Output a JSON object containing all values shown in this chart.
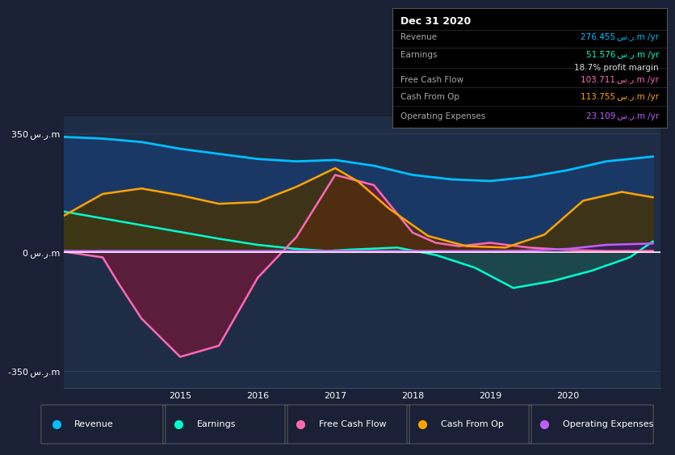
{
  "bg_color": "#1a2035",
  "plot_bg_color": "#1e2d45",
  "grid_color": "#2a3f5f",
  "zero_line_color": "#ffffff",
  "xlim": [
    2013.5,
    2021.2
  ],
  "ylim": [
    -400,
    400
  ],
  "ytick_labels": [
    "-350 س.ر.m",
    "0 س.ر.m",
    "350 س.ر.m"
  ],
  "xticks": [
    2015,
    2016,
    2017,
    2018,
    2019,
    2020
  ],
  "info_box": {
    "title": "Dec 31 2020",
    "rows": [
      {
        "label": "Revenue",
        "value": "276.455 س.ر.m /yr",
        "color": "#00bfff"
      },
      {
        "label": "Earnings",
        "value": "51.576 س.ر.m /yr",
        "color": "#00ffcc"
      },
      {
        "label": "",
        "value": "18.7% profit margin",
        "color": "#dddddd"
      },
      {
        "label": "Free Cash Flow",
        "value": "103.711 س.ر.m /yr",
        "color": "#ff69b4"
      },
      {
        "label": "Cash From Op",
        "value": "113.755 س.ر.m /yr",
        "color": "#ffa500"
      },
      {
        "label": "Operating Expenses",
        "value": "23.109 س.ر.m /yr",
        "color": "#bf5fff"
      }
    ]
  },
  "series": {
    "revenue": {
      "color": "#00bfff",
      "fill_color": "#1a3a6a",
      "x": [
        2013.5,
        2014.0,
        2014.5,
        2015.0,
        2015.5,
        2016.0,
        2016.5,
        2017.0,
        2017.5,
        2018.0,
        2018.5,
        2019.0,
        2019.5,
        2020.0,
        2020.5,
        2021.1
      ],
      "y": [
        340,
        335,
        325,
        305,
        290,
        275,
        268,
        272,
        255,
        228,
        215,
        210,
        222,
        242,
        268,
        282
      ]
    },
    "earnings": {
      "color": "#00ffcc",
      "fill_color": "#1a5050",
      "x": [
        2013.5,
        2014.0,
        2014.5,
        2015.0,
        2015.5,
        2016.0,
        2016.5,
        2016.9,
        2017.2,
        2017.8,
        2018.3,
        2018.8,
        2019.3,
        2019.8,
        2020.3,
        2020.8,
        2021.1
      ],
      "y": [
        120,
        100,
        80,
        60,
        40,
        22,
        10,
        4,
        8,
        14,
        -8,
        -45,
        -105,
        -85,
        -55,
        -15,
        32
      ]
    },
    "free_cash_flow": {
      "color": "#ff69b4",
      "fill_color": "#6b1a3a",
      "x": [
        2013.5,
        2014.0,
        2014.2,
        2014.5,
        2015.0,
        2015.5,
        2016.0,
        2016.5,
        2017.0,
        2017.5,
        2018.0,
        2018.3,
        2018.6,
        2019.0,
        2019.5,
        2020.0,
        2020.5,
        2021.1
      ],
      "y": [
        2,
        -15,
        -90,
        -195,
        -308,
        -275,
        -75,
        45,
        228,
        198,
        58,
        28,
        18,
        28,
        14,
        7,
        4,
        4
      ]
    },
    "cash_from_op": {
      "color": "#ffa500",
      "fill_color": "#4a3200",
      "x": [
        2013.5,
        2014.0,
        2014.5,
        2015.0,
        2015.5,
        2016.0,
        2016.5,
        2017.0,
        2017.3,
        2017.7,
        2018.2,
        2018.7,
        2019.2,
        2019.7,
        2020.2,
        2020.7,
        2021.1
      ],
      "y": [
        108,
        172,
        188,
        168,
        143,
        148,
        193,
        248,
        208,
        128,
        48,
        18,
        14,
        52,
        152,
        178,
        162
      ]
    },
    "operating_expenses": {
      "color": "#bf5fff",
      "fill_color": "#3d1a6a",
      "x": [
        2013.5,
        2014.0,
        2014.5,
        2015.0,
        2015.5,
        2016.0,
        2016.5,
        2017.0,
        2017.5,
        2018.0,
        2018.5,
        2019.0,
        2019.5,
        2020.0,
        2020.5,
        2021.1
      ],
      "y": [
        4,
        4,
        4,
        4,
        4,
        4,
        4,
        4,
        4,
        4,
        4,
        4,
        5,
        10,
        22,
        26
      ]
    }
  },
  "legend": [
    {
      "label": "Revenue",
      "color": "#00bfff"
    },
    {
      "label": "Earnings",
      "color": "#00ffcc"
    },
    {
      "label": "Free Cash Flow",
      "color": "#ff69b4"
    },
    {
      "label": "Cash From Op",
      "color": "#ffa500"
    },
    {
      "label": "Operating Expenses",
      "color": "#bf5fff"
    }
  ]
}
